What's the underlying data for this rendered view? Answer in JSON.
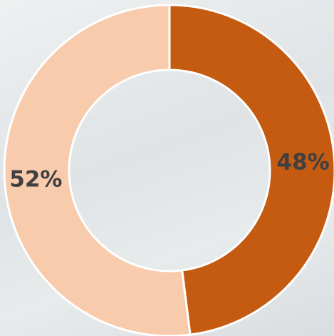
{
  "chart_data": {
    "type": "donut",
    "values": [
      48,
      52
    ],
    "value_labels": [
      "48%",
      "52%"
    ],
    "colors": [
      "#c55a11",
      "#f8cbad"
    ]
  }
}
